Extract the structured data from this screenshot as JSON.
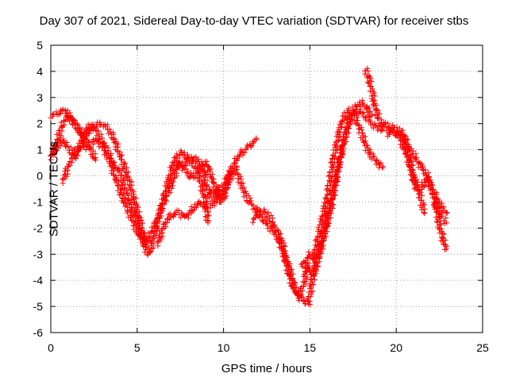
{
  "chart_data": {
    "type": "scatter",
    "title": "Day 307 of 2021, Sidereal Day-to-day VTEC variation (SDTVAR) for receiver stbs",
    "xlabel": "GPS time / hours",
    "ylabel": "SDTVAR / TECUs",
    "xlim": [
      0,
      25
    ],
    "ylim": [
      -6,
      5
    ],
    "xticks": [
      "0",
      "5",
      "10",
      "15",
      "20",
      "25"
    ],
    "yticks": [
      "-6",
      "-5",
      "-4",
      "-3",
      "-2",
      "-1",
      "0",
      "1",
      "2",
      "3",
      "4",
      "5"
    ],
    "grid": true,
    "marker": "+",
    "series": [
      {
        "name": "sdtvar",
        "color": "#ff0000",
        "segments": [
          [
            [
              0.0,
              2.3
            ],
            [
              0.4,
              2.4
            ],
            [
              0.8,
              2.5
            ],
            [
              1.2,
              2.2
            ],
            [
              1.6,
              1.8
            ],
            [
              2.0,
              1.5
            ],
            [
              2.4,
              1.9
            ],
            [
              2.8,
              2.0
            ],
            [
              3.2,
              1.9
            ],
            [
              3.6,
              1.5
            ],
            [
              4.0,
              0.8
            ],
            [
              4.4,
              0.1
            ],
            [
              4.8,
              -0.8
            ],
            [
              5.2,
              -1.8
            ],
            [
              5.5,
              -2.8
            ],
            [
              5.7,
              -3.0
            ],
            [
              6.0,
              -2.3
            ],
            [
              6.4,
              -1.2
            ],
            [
              6.8,
              -0.2
            ],
            [
              7.2,
              0.7
            ],
            [
              7.6,
              0.9
            ],
            [
              8.0,
              0.6
            ],
            [
              8.4,
              0.7
            ],
            [
              8.8,
              0.3
            ],
            [
              9.0,
              -0.3
            ],
            [
              9.2,
              -0.8
            ],
            [
              9.6,
              -0.5
            ],
            [
              10.0,
              -0.9
            ],
            [
              10.3,
              0.0
            ],
            [
              10.8,
              0.7
            ],
            [
              11.2,
              1.0
            ],
            [
              11.6,
              1.2
            ],
            [
              11.9,
              1.4
            ]
          ],
          [
            [
              0.0,
              0.7
            ],
            [
              0.3,
              1.2
            ],
            [
              0.7,
              2.0
            ],
            [
              1.0,
              2.3
            ],
            [
              1.4,
              2.0
            ],
            [
              1.8,
              1.5
            ],
            [
              2.2,
              1.2
            ],
            [
              2.6,
              1.4
            ],
            [
              3.0,
              1.1
            ],
            [
              3.4,
              0.6
            ],
            [
              3.8,
              -0.2
            ],
            [
              4.2,
              -0.9
            ],
            [
              4.6,
              -1.5
            ],
            [
              5.0,
              -2.1
            ],
            [
              5.4,
              -2.6
            ],
            [
              5.8,
              -2.2
            ],
            [
              6.2,
              -1.6
            ],
            [
              6.6,
              -0.9
            ],
            [
              7.0,
              -0.3
            ],
            [
              7.4,
              0.5
            ],
            [
              7.8,
              0.2
            ],
            [
              8.2,
              -0.1
            ],
            [
              8.6,
              0.3
            ],
            [
              9.0,
              0.5
            ],
            [
              9.4,
              -0.2
            ],
            [
              9.8,
              -1.0
            ],
            [
              10.3,
              -0.2
            ],
            [
              10.7,
              0.3
            ],
            [
              11.0,
              -0.3
            ],
            [
              11.4,
              -0.9
            ],
            [
              11.8,
              -1.2
            ],
            [
              12.2,
              -1.6
            ],
            [
              12.6,
              -1.9
            ],
            [
              13.0,
              -2.2
            ],
            [
              13.4,
              -2.8
            ],
            [
              13.8,
              -3.5
            ],
            [
              14.2,
              -4.5
            ],
            [
              14.6,
              -4.8
            ],
            [
              14.9,
              -4.9
            ],
            [
              15.1,
              -4.2
            ],
            [
              15.4,
              -3.3
            ],
            [
              15.8,
              -2.4
            ],
            [
              16.2,
              -1.3
            ],
            [
              16.6,
              0.2
            ],
            [
              17.0,
              1.4
            ],
            [
              17.4,
              2.3
            ],
            [
              17.8,
              2.5
            ],
            [
              18.2,
              2.3
            ],
            [
              18.6,
              2.0
            ],
            [
              19.0,
              1.8
            ],
            [
              19.4,
              1.8
            ],
            [
              19.8,
              1.7
            ],
            [
              20.2,
              1.5
            ],
            [
              20.6,
              0.8
            ],
            [
              21.0,
              0.0
            ],
            [
              21.4,
              -0.8
            ],
            [
              21.6,
              -1.4
            ]
          ],
          [
            [
              0.2,
              0.9
            ],
            [
              0.6,
              1.4
            ],
            [
              1.0,
              1.1
            ],
            [
              1.4,
              0.7
            ],
            [
              1.8,
              1.3
            ],
            [
              2.2,
              1.9
            ],
            [
              2.6,
              1.8
            ],
            [
              3.0,
              1.3
            ],
            [
              3.4,
              0.8
            ],
            [
              3.6,
              0.4
            ],
            [
              4.0,
              0.2
            ],
            [
              4.4,
              -0.8
            ],
            [
              4.8,
              -1.3
            ],
            [
              5.2,
              -2.2
            ],
            [
              5.5,
              -2.6
            ],
            [
              5.7,
              -2.4
            ]
          ],
          [
            [
              0.7,
              -0.2
            ],
            [
              1.1,
              0.5
            ],
            [
              1.5,
              1.0
            ],
            [
              1.9,
              1.2
            ],
            [
              2.3,
              1.0
            ],
            [
              2.6,
              0.6
            ]
          ],
          [
            [
              6.2,
              -2.6
            ],
            [
              6.6,
              -1.8
            ],
            [
              7.0,
              -1.5
            ],
            [
              7.4,
              -1.4
            ],
            [
              7.8,
              -1.6
            ],
            [
              8.2,
              -1.3
            ],
            [
              8.6,
              -1.0
            ],
            [
              9.0,
              -1.2
            ],
            [
              9.4,
              -1.1
            ],
            [
              9.7,
              -0.6
            ],
            [
              10.1,
              -0.3
            ],
            [
              10.4,
              0.2
            ]
          ],
          [
            [
              7.3,
              0.5
            ],
            [
              7.7,
              0.4
            ],
            [
              8.1,
              0.6
            ],
            [
              8.5,
              0.2
            ],
            [
              8.9,
              -0.8
            ],
            [
              9.1,
              -1.8
            ]
          ],
          [
            [
              11.7,
              -1.7
            ],
            [
              12.2,
              -1.3
            ],
            [
              12.6,
              -1.5
            ],
            [
              13.0,
              -2.0
            ],
            [
              13.4,
              -2.5
            ],
            [
              13.6,
              -3.3
            ],
            [
              14.0,
              -4.2
            ],
            [
              14.4,
              -4.6
            ],
            [
              14.7,
              -4.0
            ],
            [
              14.9,
              -3.0
            ],
            [
              15.2,
              -3.2
            ],
            [
              15.6,
              -2.0
            ],
            [
              16.0,
              -0.8
            ],
            [
              16.4,
              0.8
            ],
            [
              16.8,
              2.0
            ],
            [
              17.2,
              2.5
            ],
            [
              17.6,
              2.3
            ],
            [
              18.0,
              1.6
            ],
            [
              18.4,
              0.9
            ],
            [
              18.8,
              0.6
            ],
            [
              19.2,
              0.3
            ]
          ],
          [
            [
              14.5,
              -3.3
            ],
            [
              14.8,
              -3.5
            ],
            [
              15.2,
              -3.8
            ],
            [
              15.6,
              -2.8
            ],
            [
              16.0,
              -1.6
            ],
            [
              16.4,
              -0.5
            ],
            [
              16.8,
              0.9
            ],
            [
              17.2,
              2.0
            ],
            [
              17.6,
              2.6
            ],
            [
              18.0,
              2.8
            ],
            [
              18.3,
              2.6
            ],
            [
              18.6,
              2.3
            ]
          ],
          [
            [
              18.2,
              4.1
            ],
            [
              18.4,
              3.8
            ],
            [
              18.6,
              3.2
            ],
            [
              18.8,
              2.6
            ],
            [
              19.0,
              2.2
            ],
            [
              19.2,
              1.9
            ]
          ],
          [
            [
              19.2,
              2.0
            ],
            [
              19.6,
              1.9
            ],
            [
              20.0,
              1.8
            ],
            [
              20.4,
              1.6
            ],
            [
              20.8,
              1.0
            ],
            [
              21.2,
              0.6
            ],
            [
              21.5,
              0.3
            ],
            [
              21.8,
              0.0
            ],
            [
              22.0,
              -0.4
            ],
            [
              22.3,
              -0.8
            ],
            [
              22.6,
              -1.2
            ],
            [
              22.9,
              -1.4
            ]
          ],
          [
            [
              19.5,
              1.6
            ],
            [
              19.9,
              1.7
            ],
            [
              20.3,
              1.5
            ],
            [
              20.6,
              1.2
            ],
            [
              20.8,
              0.6
            ],
            [
              21.0,
              -0.2
            ],
            [
              21.2,
              -0.5
            ],
            [
              21.5,
              -0.4
            ],
            [
              21.8,
              -0.1
            ],
            [
              22.1,
              -0.6
            ],
            [
              22.3,
              -1.2
            ],
            [
              22.5,
              -1.9
            ],
            [
              22.7,
              -2.4
            ],
            [
              22.9,
              -2.8
            ]
          ],
          [
            [
              22.2,
              -1.0
            ],
            [
              22.5,
              -1.4
            ],
            [
              22.7,
              -1.6
            ],
            [
              22.9,
              -1.8
            ]
          ]
        ]
      }
    ]
  }
}
